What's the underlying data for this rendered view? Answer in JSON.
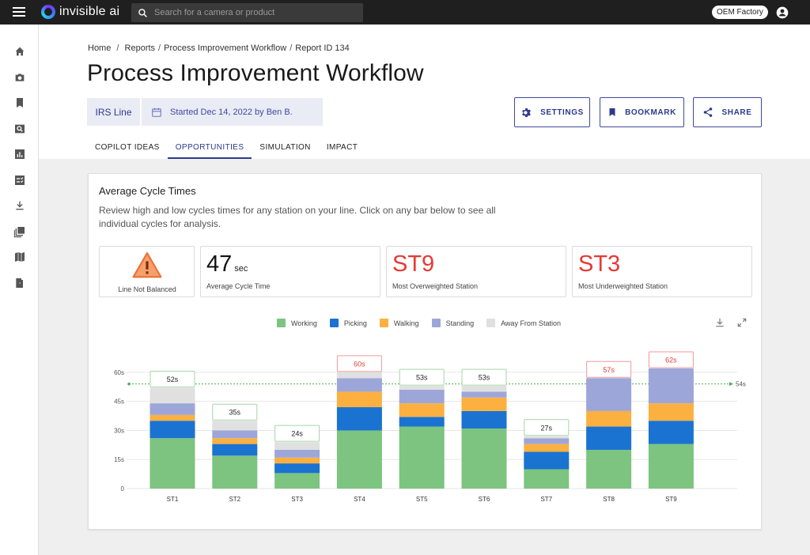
{
  "topbar": {
    "brand": "invisible ai",
    "search_placeholder": "Search for a camera or product",
    "factory": "OEM Factory"
  },
  "sidebar": {
    "icons": [
      "home-icon",
      "camera-icon",
      "bookmark-icon",
      "search-image-icon",
      "bar-chart-icon",
      "checklist-icon",
      "download-icon",
      "library-icon",
      "map-icon",
      "exit-icon"
    ]
  },
  "breadcrumb": [
    "Home",
    "Reports",
    "Process Improvement Workflow",
    "Report ID 134"
  ],
  "page_title": "Process Improvement Workflow",
  "line_chip": "IRS Line",
  "date_chip": "Started Dec 14, 2022 by Ben B.",
  "header_buttons": {
    "settings": "SETTINGS",
    "bookmark": "BOOKMARK",
    "share": "SHARE"
  },
  "tabs": [
    "COPILOT IDEAS",
    "OPPORTUNITIES",
    "SIMULATION",
    "IMPACT"
  ],
  "active_tab": "OPPORTUNITIES",
  "card": {
    "title": "Average Cycle Times",
    "description": "Review high and low cycles times for any station on your line. Click on any bar below to see all individual cycles for analysis."
  },
  "stats": {
    "balance_label": "Line Not Balanced",
    "avg_value": "47",
    "avg_unit": "sec",
    "avg_label": "Average Cycle Time",
    "over_value": "ST9",
    "over_label": "Most Overweighted Station",
    "under_value": "ST3",
    "under_label": "Most Underweighted Station"
  },
  "colors": {
    "working": "#7cc47f",
    "picking": "#1a73d1",
    "walking": "#fbb040",
    "standing": "#9da6d8",
    "away": "#e0e0e0",
    "accent": "#2c3a8c",
    "alert": "#e53935"
  },
  "chart_data": {
    "type": "bar",
    "stacked": true,
    "categories": [
      "ST1",
      "ST2",
      "ST3",
      "ST4",
      "ST5",
      "ST6",
      "ST7",
      "ST8",
      "ST9"
    ],
    "series": [
      {
        "name": "Working",
        "values": [
          26,
          17,
          8,
          30,
          32,
          31,
          10,
          20,
          23
        ]
      },
      {
        "name": "Picking",
        "values": [
          9,
          6,
          5,
          12,
          5,
          9,
          9,
          12,
          12
        ]
      },
      {
        "name": "Walking",
        "values": [
          3,
          3,
          3,
          8,
          7,
          7,
          4,
          8,
          9
        ]
      },
      {
        "name": "Standing",
        "values": [
          6,
          4,
          4,
          7,
          7,
          3,
          3,
          17,
          18
        ]
      },
      {
        "name": "Away From Station",
        "values": [
          8,
          5,
          4,
          3,
          2,
          3,
          1,
          0,
          0
        ]
      }
    ],
    "totals": [
      "52s",
      "35s",
      "24s",
      "60s",
      "53s",
      "53s",
      "27s",
      "57s",
      "62s"
    ],
    "total_flag": [
      "normal",
      "normal",
      "normal",
      "over",
      "normal",
      "normal",
      "normal",
      "over",
      "over"
    ],
    "ylim": [
      0,
      62
    ],
    "yticks": [
      "0",
      "15s",
      "30s",
      "45s",
      "60s"
    ],
    "yticks_values": [
      0,
      15,
      30,
      45,
      60
    ],
    "target": {
      "value": 54,
      "label": "54s"
    },
    "legend_position": "top-center",
    "grid": true
  }
}
